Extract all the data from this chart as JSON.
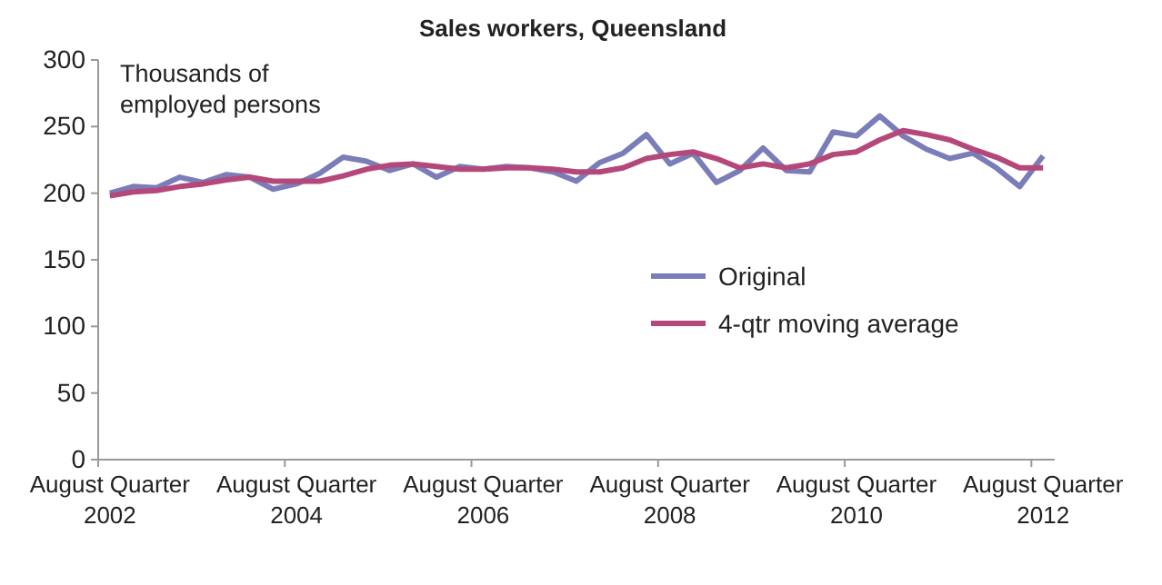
{
  "chart_data": {
    "type": "line",
    "title": "Sales workers, Queensland",
    "ylabel": "Thousands of employed persons",
    "categories": [
      "August Quarter 2002",
      null,
      null,
      null,
      null,
      null,
      null,
      null,
      "August Quarter 2004",
      null,
      null,
      null,
      null,
      null,
      null,
      null,
      "August Quarter 2006",
      null,
      null,
      null,
      null,
      null,
      null,
      null,
      "August Quarter 2008",
      null,
      null,
      null,
      null,
      null,
      null,
      null,
      "August Quarter 2010",
      null,
      null,
      null,
      null,
      null,
      null,
      null,
      "August Quarter 2012"
    ],
    "series": [
      {
        "name": "Original",
        "color": "#7a7db8",
        "values": [
          200,
          205,
          204,
          212,
          208,
          214,
          212,
          203,
          207,
          215,
          227,
          224,
          217,
          222,
          212,
          220,
          218,
          220,
          219,
          216,
          209,
          223,
          230,
          244,
          222,
          230,
          208,
          217,
          234,
          217,
          216,
          246,
          243,
          258,
          243,
          233,
          226,
          230,
          219,
          205,
          228
        ]
      },
      {
        "name": "4-qtr moving average",
        "color": "#b5487a",
        "values": [
          198,
          201,
          202,
          205,
          207,
          210,
          212,
          209,
          209,
          209,
          213,
          218,
          221,
          222,
          220,
          218,
          218,
          219,
          219,
          218,
          216,
          216,
          219,
          226,
          229,
          231,
          226,
          219,
          222,
          219,
          222,
          229,
          231,
          240,
          247,
          244,
          240,
          233,
          227,
          219,
          219
        ]
      }
    ],
    "ylim": [
      0,
      300
    ],
    "yticks": [
      0,
      50,
      100,
      150,
      200,
      250,
      300
    ],
    "grid": false,
    "legend": "right",
    "marker": "none",
    "line_style": "solid"
  }
}
